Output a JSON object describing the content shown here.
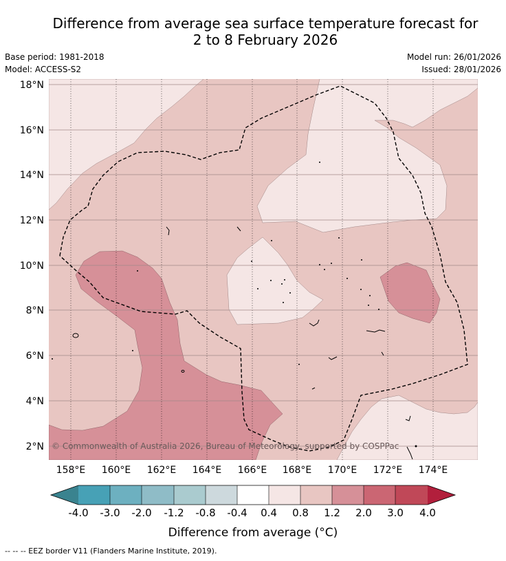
{
  "title": {
    "line1": "Difference from average sea surface temperature forecast for",
    "line2": "2 to 8 February 2026"
  },
  "meta": {
    "base_period": "Base period: 1981-2018",
    "model": "Model: ACCESS-S2",
    "model_run": "Model run: 26/01/2026",
    "issued": "Issued: 28/01/2026"
  },
  "map": {
    "lon_labels": [
      "158°E",
      "160°E",
      "162°E",
      "164°E",
      "166°E",
      "168°E",
      "170°E",
      "172°E",
      "174°E"
    ],
    "lat_labels": [
      "18°N",
      "16°N",
      "14°N",
      "12°N",
      "10°N",
      "8°N",
      "6°N",
      "4°N",
      "2°N"
    ],
    "copyright": "© Commonwealth of Australia 2026, Bureau of Meteorology, supported by COSPPac",
    "colors": {
      "band_04_08": "#f5e6e5",
      "band_08_12": "#e8c6c2",
      "band_12_20": "#d69098",
      "grid": "#000000"
    }
  },
  "colorbar": {
    "tick_labels": [
      "-4.0",
      "-3.0",
      "-2.0",
      "-1.2",
      "-0.8",
      "-0.4",
      "0.4",
      "0.8",
      "1.2",
      "2.0",
      "3.0",
      "4.0"
    ],
    "colors": [
      "#47a1b6",
      "#6db0c0",
      "#8fbcc7",
      "#aacbcf",
      "#cdd9dd",
      "#ffffff",
      "#f5e6e5",
      "#e8c6c2",
      "#d69098",
      "#cb6673",
      "#c04858"
    ],
    "under_color": "#3a838f",
    "over_color": "#b21f3c",
    "label": "Difference from average (°C)"
  },
  "footer": "--  --  -- EEZ border V11 (Flanders Marine Institute, 2019)."
}
